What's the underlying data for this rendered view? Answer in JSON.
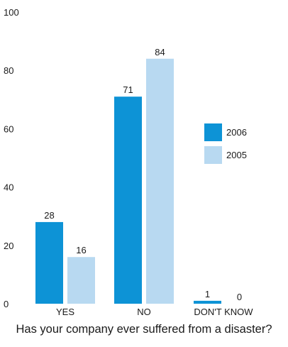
{
  "chart_data": {
    "type": "bar",
    "title": "Has your company ever suffered from a disaster?",
    "xlabel": "",
    "ylabel": "",
    "categories": [
      "YES",
      "NO",
      "DON'T KNOW"
    ],
    "series": [
      {
        "name": "2006",
        "values": [
          28,
          71,
          1
        ],
        "color": "#0d93d6"
      },
      {
        "name": "2005",
        "values": [
          16,
          84,
          0
        ],
        "color": "#b8d9f1"
      }
    ],
    "ylim": [
      0,
      100
    ],
    "yticks": [
      0,
      20,
      40,
      60,
      80,
      100
    ],
    "grid": false,
    "legend_position": "right"
  }
}
